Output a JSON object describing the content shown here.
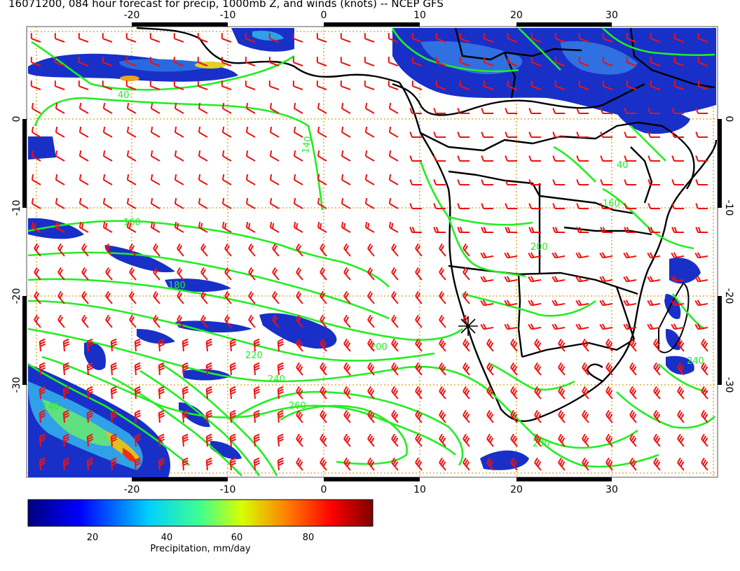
{
  "title": "16071200, 084 hour forecast for precip, 1000mb Z, and winds (knots) -- NCEP GFS",
  "map": {
    "lon_ticks": [
      "-20",
      "-10",
      "0",
      "10",
      "20",
      "30"
    ],
    "lat_ticks": [
      "0",
      "-10",
      "-20",
      "-30"
    ],
    "contour_labels": [
      "40",
      "140",
      "160",
      "180",
      "200",
      "220",
      "240",
      "260",
      "200",
      "240",
      "160",
      "200",
      "140",
      "40"
    ],
    "colors": {
      "contour": "#22ee22",
      "wind_barb": "#ee1111",
      "coast": "#000000",
      "grid": "#d4a017"
    }
  },
  "colorbar": {
    "ticks": [
      "20",
      "40",
      "60",
      "80"
    ],
    "label": "Precipitation, mm/day"
  }
}
